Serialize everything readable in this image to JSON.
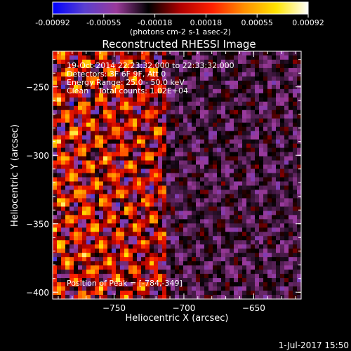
{
  "colorbar": {
    "tick_labels": [
      "-0.00092",
      "-0.00055",
      "-0.00018",
      "0.00018",
      "0.00055",
      "0.00092"
    ],
    "units_label": "(photons cm-2 s-1 asec-2)",
    "range": [
      -0.00092,
      0.00092
    ],
    "colormap": [
      "#0000ff",
      "#5a3fcf",
      "#9a3a9a",
      "#000000",
      "#b00000",
      "#ff2000",
      "#ff9000",
      "#ffe400",
      "#ffffff"
    ]
  },
  "title": "Reconstructed RHESSI Image",
  "info": {
    "line1": "19-Oct-2014 22:23:32.000 to 22:33:32.000",
    "line2": "Detectors: 3F 6F 9F, Att 0",
    "line3": "Energy Range: 25.0 - 50.0 keV",
    "line4": "Clean    Total counts: 1.02E+04"
  },
  "peak_label": "Position of Peak = [-784,-349]",
  "footer_date": "1-Jul-2017 15:50",
  "chart_data": {
    "type": "heatmap",
    "title": "Reconstructed RHESSI Image",
    "xlabel": "Heliocentric X (arcsec)",
    "ylabel": "Heliocentric Y (arcsec)",
    "xlim": [
      -794,
      -616
    ],
    "ylim": [
      -405,
      -224
    ],
    "x_ticks": [
      -750,
      -700,
      -650
    ],
    "y_ticks": [
      -250,
      -300,
      -350,
      -400
    ],
    "x_tick_labels": [
      "−750",
      "−700",
      "−650"
    ],
    "y_tick_labels": [
      "−250",
      "−300",
      "−350",
      "−400"
    ],
    "peak": [
      -784,
      -349
    ],
    "value_range": [
      -0.00092,
      0.00092
    ]
  }
}
